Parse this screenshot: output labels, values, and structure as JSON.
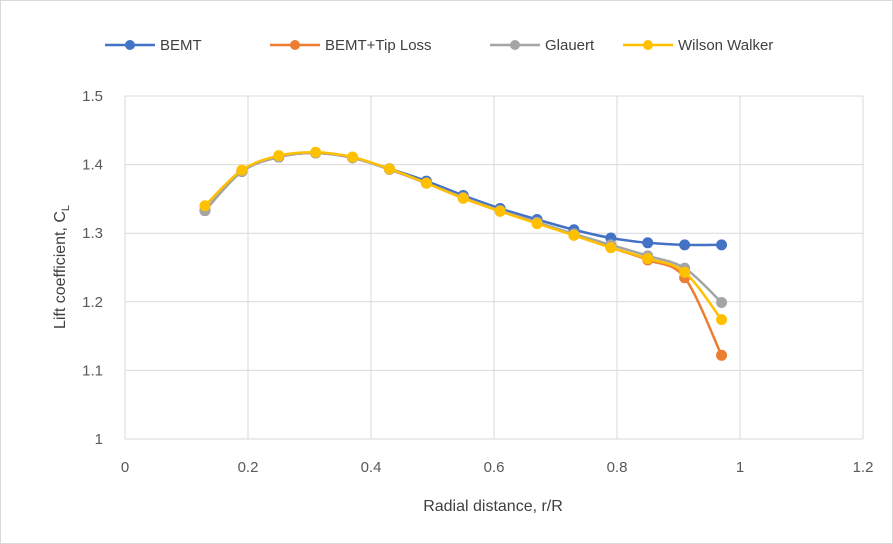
{
  "chart_data": {
    "type": "line",
    "xlabel": "Radial distance, r/R",
    "ylabel_main": "Lift coefficient, C",
    "ylabel_sub": "L",
    "xlim": [
      0,
      1.2
    ],
    "ylim": [
      1,
      1.5
    ],
    "xticks": [
      0,
      0.2,
      0.4,
      0.6,
      0.8,
      1,
      1.2
    ],
    "yticks": [
      1,
      1.1,
      1.2,
      1.3,
      1.4,
      1.5
    ],
    "xtick_labels": [
      "0",
      "0.2",
      "0.4",
      "0.6",
      "0.8",
      "1",
      "1.2"
    ],
    "ytick_labels": [
      "1",
      "1.1",
      "1.2",
      "1.3",
      "1.4",
      "1.5"
    ],
    "grid": true,
    "legend_position": "top",
    "x": [
      0.13,
      0.19,
      0.25,
      0.31,
      0.37,
      0.43,
      0.49,
      0.55,
      0.61,
      0.67,
      0.73,
      0.79,
      0.85,
      0.91,
      0.97
    ],
    "series": [
      {
        "name": "BEMT",
        "color": "#4472C4",
        "values": [
          1.333,
          1.39,
          1.411,
          1.417,
          1.41,
          1.394,
          1.376,
          1.355,
          1.336,
          1.32,
          1.305,
          1.293,
          1.286,
          1.283,
          1.283
        ]
      },
      {
        "name": "BEMT+Tip Loss",
        "color": "#ED7D31",
        "values": [
          1.333,
          1.39,
          1.411,
          1.417,
          1.41,
          1.393,
          1.373,
          1.351,
          1.332,
          1.315,
          1.297,
          1.279,
          1.261,
          1.235,
          1.122
        ]
      },
      {
        "name": "Glauert",
        "color": "#A5A5A5",
        "values": [
          1.333,
          1.39,
          1.411,
          1.417,
          1.41,
          1.393,
          1.373,
          1.352,
          1.333,
          1.316,
          1.299,
          1.283,
          1.267,
          1.249,
          1.199
        ]
      },
      {
        "name": "Wilson Walker",
        "color": "#FFC000",
        "values": [
          1.34,
          1.392,
          1.413,
          1.418,
          1.411,
          1.394,
          1.373,
          1.351,
          1.332,
          1.314,
          1.297,
          1.279,
          1.263,
          1.243,
          1.174
        ]
      }
    ]
  }
}
